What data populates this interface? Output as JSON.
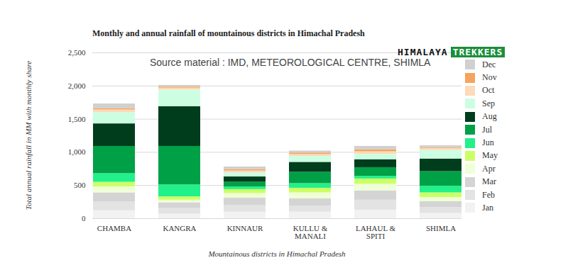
{
  "chart_data": {
    "type": "bar",
    "stacked": true,
    "title": "Monthly and annual rainfall of mountainous districts in Himachal Pradesh",
    "source": "Source material : IMD, METEOROLOGICAL CENTRE, SHIMLA",
    "brand": [
      "HIMALAYA",
      "TREKKERS"
    ],
    "x_label": "Mountainous districts in Himachal Pradesh",
    "y_label": "Total annual rainfall in MM with monthly share",
    "categories": [
      "CHAMBA",
      "KANGRA",
      "KINNAUR",
      "KULLU & MANALI",
      "LAHAUL & SPITI",
      "SHIMLA"
    ],
    "ylim": [
      0,
      2500
    ],
    "yticks": [
      0,
      500,
      {
        "value": 1000,
        "label": "1,000"
      },
      {
        "value": 1500,
        "label": "1,500"
      },
      {
        "value": 2000,
        "label": "2,000"
      },
      {
        "value": 2500,
        "label": "2,500"
      }
    ],
    "grid": true,
    "legend": "right",
    "series": [
      {
        "name": "Jan",
        "color": "#f2f2f2",
        "values": [
          120,
          70,
          100,
          100,
          130,
          80
        ]
      },
      {
        "name": "Feb",
        "color": "#e3e3e3",
        "values": [
          130,
          90,
          100,
          90,
          150,
          90
        ]
      },
      {
        "name": "Mar",
        "color": "#d4d4d4",
        "values": [
          140,
          80,
          110,
          110,
          140,
          90
        ]
      },
      {
        "name": "Apr",
        "color": "#efffd6",
        "values": [
          90,
          40,
          70,
          90,
          100,
          60
        ]
      },
      {
        "name": "May",
        "color": "#ccff66",
        "values": [
          70,
          50,
          60,
          70,
          80,
          70
        ]
      },
      {
        "name": "Jun",
        "color": "#22f08a",
        "values": [
          130,
          180,
          40,
          70,
          40,
          100
        ]
      },
      {
        "name": "Jul",
        "color": "#00a046",
        "values": [
          410,
          580,
          70,
          170,
          130,
          220
        ]
      },
      {
        "name": "Aug",
        "color": "#003d1c",
        "values": [
          340,
          600,
          80,
          150,
          120,
          190
        ]
      },
      {
        "name": "Sep",
        "color": "#ccffe2",
        "values": [
          170,
          250,
          60,
          90,
          80,
          130
        ]
      },
      {
        "name": "Oct",
        "color": "#fddab8",
        "values": [
          40,
          30,
          30,
          30,
          40,
          30
        ]
      },
      {
        "name": "Nov",
        "color": "#f7a35c",
        "values": [
          20,
          15,
          20,
          20,
          30,
          10
        ]
      },
      {
        "name": "Dec",
        "color": "#d0d0d0",
        "values": [
          70,
          25,
          40,
          30,
          50,
          30
        ]
      }
    ]
  }
}
